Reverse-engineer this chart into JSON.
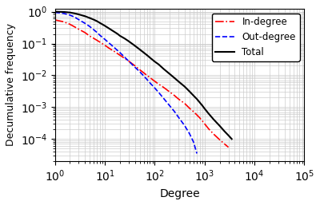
{
  "title": "",
  "xlabel": "Degree",
  "ylabel": "Decumulative frequency",
  "xlim_log": [
    0,
    5
  ],
  "ylim_log": [
    -4.7,
    0.1
  ],
  "background_color": "#ffffff",
  "grid": true,
  "legend": {
    "entries": [
      "In-degree",
      "Out-degree",
      "Total"
    ],
    "colors": [
      "red",
      "blue",
      "black"
    ],
    "styles": [
      "-.",
      "--",
      "-"
    ],
    "loc": "upper right"
  },
  "in_degree": {
    "x": [
      1,
      1.5,
      2,
      2.5,
      3,
      4,
      5,
      6,
      7,
      8,
      10,
      12,
      15,
      18,
      20,
      25,
      30,
      40,
      50,
      60,
      70,
      80,
      100,
      120,
      150,
      200,
      250,
      300,
      400,
      500,
      600,
      700,
      800,
      900,
      1000,
      1200,
      1500,
      2000,
      2500,
      3000
    ],
    "y": [
      0.55,
      0.48,
      0.4,
      0.33,
      0.28,
      0.22,
      0.17,
      0.145,
      0.125,
      0.11,
      0.088,
      0.072,
      0.058,
      0.048,
      0.043,
      0.034,
      0.028,
      0.02,
      0.015,
      0.012,
      0.01,
      0.0085,
      0.0065,
      0.0053,
      0.0042,
      0.003,
      0.0023,
      0.0018,
      0.0013,
      0.00092,
      0.00072,
      0.00057,
      0.00046,
      0.00037,
      0.0003,
      0.00021,
      0.000145,
      9.5e-05,
      7e-05,
      5.5e-05
    ]
  },
  "out_degree": {
    "x": [
      1,
      1.5,
      2,
      2.5,
      3,
      4,
      5,
      6,
      7,
      8,
      10,
      12,
      15,
      18,
      20,
      25,
      30,
      40,
      50,
      60,
      70,
      80,
      100,
      120,
      150,
      200,
      250,
      300,
      400,
      500,
      600,
      700
    ],
    "y": [
      0.95,
      0.88,
      0.78,
      0.67,
      0.56,
      0.43,
      0.34,
      0.27,
      0.22,
      0.18,
      0.135,
      0.105,
      0.078,
      0.06,
      0.052,
      0.037,
      0.028,
      0.018,
      0.013,
      0.0096,
      0.0074,
      0.0058,
      0.004,
      0.0029,
      0.0019,
      0.0011,
      0.00072,
      0.00048,
      0.00026,
      0.000145,
      8e-05,
      3.5e-05
    ]
  },
  "total": {
    "x": [
      1,
      1.5,
      2,
      2.5,
      3,
      4,
      5,
      6,
      7,
      8,
      10,
      12,
      15,
      18,
      20,
      25,
      30,
      40,
      50,
      60,
      70,
      80,
      100,
      120,
      150,
      200,
      250,
      300,
      400,
      500,
      600,
      700,
      800,
      900,
      1000,
      1200,
      1500,
      2000,
      2500,
      3000,
      3500
    ],
    "y": [
      1.0,
      0.98,
      0.94,
      0.88,
      0.82,
      0.72,
      0.63,
      0.56,
      0.5,
      0.44,
      0.36,
      0.3,
      0.24,
      0.2,
      0.175,
      0.143,
      0.118,
      0.085,
      0.065,
      0.052,
      0.043,
      0.036,
      0.027,
      0.022,
      0.016,
      0.011,
      0.0082,
      0.0064,
      0.0044,
      0.0031,
      0.0023,
      0.0018,
      0.0014,
      0.00112,
      0.0009,
      0.00063,
      0.00042,
      0.00026,
      0.000175,
      0.00013,
      0.0001
    ]
  }
}
